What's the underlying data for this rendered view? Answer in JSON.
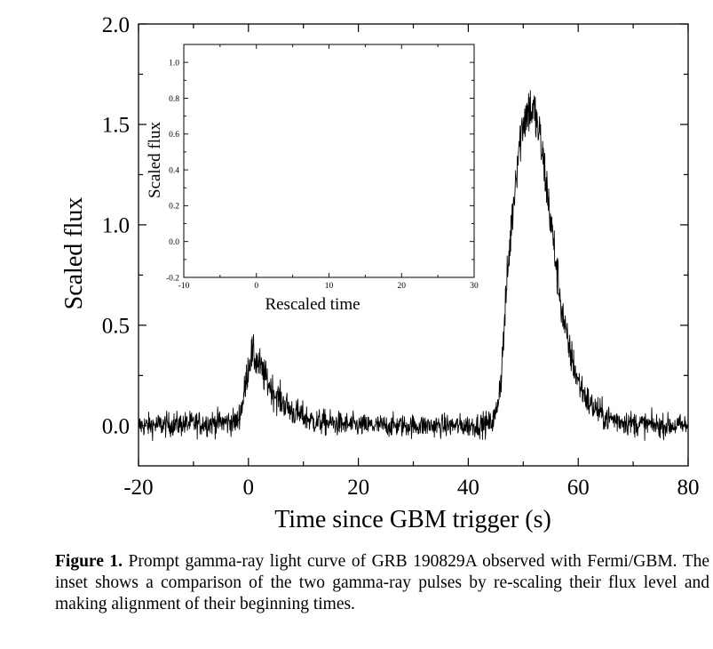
{
  "figure": {
    "caption_label": "Figure 1.",
    "caption_text": "Prompt gamma-ray light curve of GRB 190829A observed with Fermi/GBM. The inset shows a comparison of the two gamma-ray pulses by re-scaling their flux level and making alignment of their beginning times."
  },
  "chart_data": [
    {
      "type": "line",
      "title": "",
      "xlabel": "Time since GBM trigger (s)",
      "ylabel": "Scaled flux",
      "xlim": [
        -20,
        80
      ],
      "ylim": [
        -0.2,
        2.0
      ],
      "xticks": [
        -20,
        0,
        20,
        40,
        60,
        80
      ],
      "xtick_labels": [
        "-20",
        "0",
        "20",
        "40",
        "60",
        "80"
      ],
      "yticks": [
        0.0,
        0.5,
        1.0,
        1.5,
        2.0
      ],
      "ytick_labels": [
        "0.0",
        "0.5",
        "1.0",
        "1.5",
        "2.0"
      ],
      "series": [
        {
          "name": "light curve",
          "x": [
            -20,
            -10,
            -2,
            -1,
            0,
            0.5,
            1,
            2,
            3,
            5,
            8,
            12,
            20,
            30,
            40,
            44,
            45,
            46,
            47,
            48,
            49,
            50,
            51,
            52,
            53,
            54,
            55,
            56,
            57,
            58,
            60,
            62,
            65,
            70,
            75,
            80
          ],
          "values": [
            0.0,
            0.01,
            0.02,
            0.12,
            0.3,
            0.36,
            0.34,
            0.3,
            0.24,
            0.15,
            0.07,
            0.02,
            0.0,
            0.0,
            0.0,
            0.01,
            0.05,
            0.25,
            0.7,
            1.05,
            1.35,
            1.52,
            1.58,
            1.56,
            1.44,
            1.25,
            1.02,
            0.8,
            0.58,
            0.42,
            0.22,
            0.11,
            0.04,
            0.01,
            0.0,
            0.0
          ]
        }
      ]
    },
    {
      "type": "line",
      "title": "",
      "xlabel": "Rescaled time",
      "ylabel": "Scaled flux",
      "xlim": [
        -10,
        30
      ],
      "ylim": [
        -0.2,
        1.1
      ],
      "xticks": [
        -10,
        0,
        10,
        20,
        30
      ],
      "xtick_labels": [
        "-10",
        "0",
        "10",
        "20",
        "30"
      ],
      "yticks": [
        -0.2,
        0.0,
        0.2,
        0.4,
        0.6,
        0.8,
        1.0
      ],
      "ytick_labels": [
        "-0.2",
        "0.0",
        "0.2",
        "0.4",
        "0.6",
        "0.8",
        "1.0"
      ],
      "series": []
    }
  ]
}
